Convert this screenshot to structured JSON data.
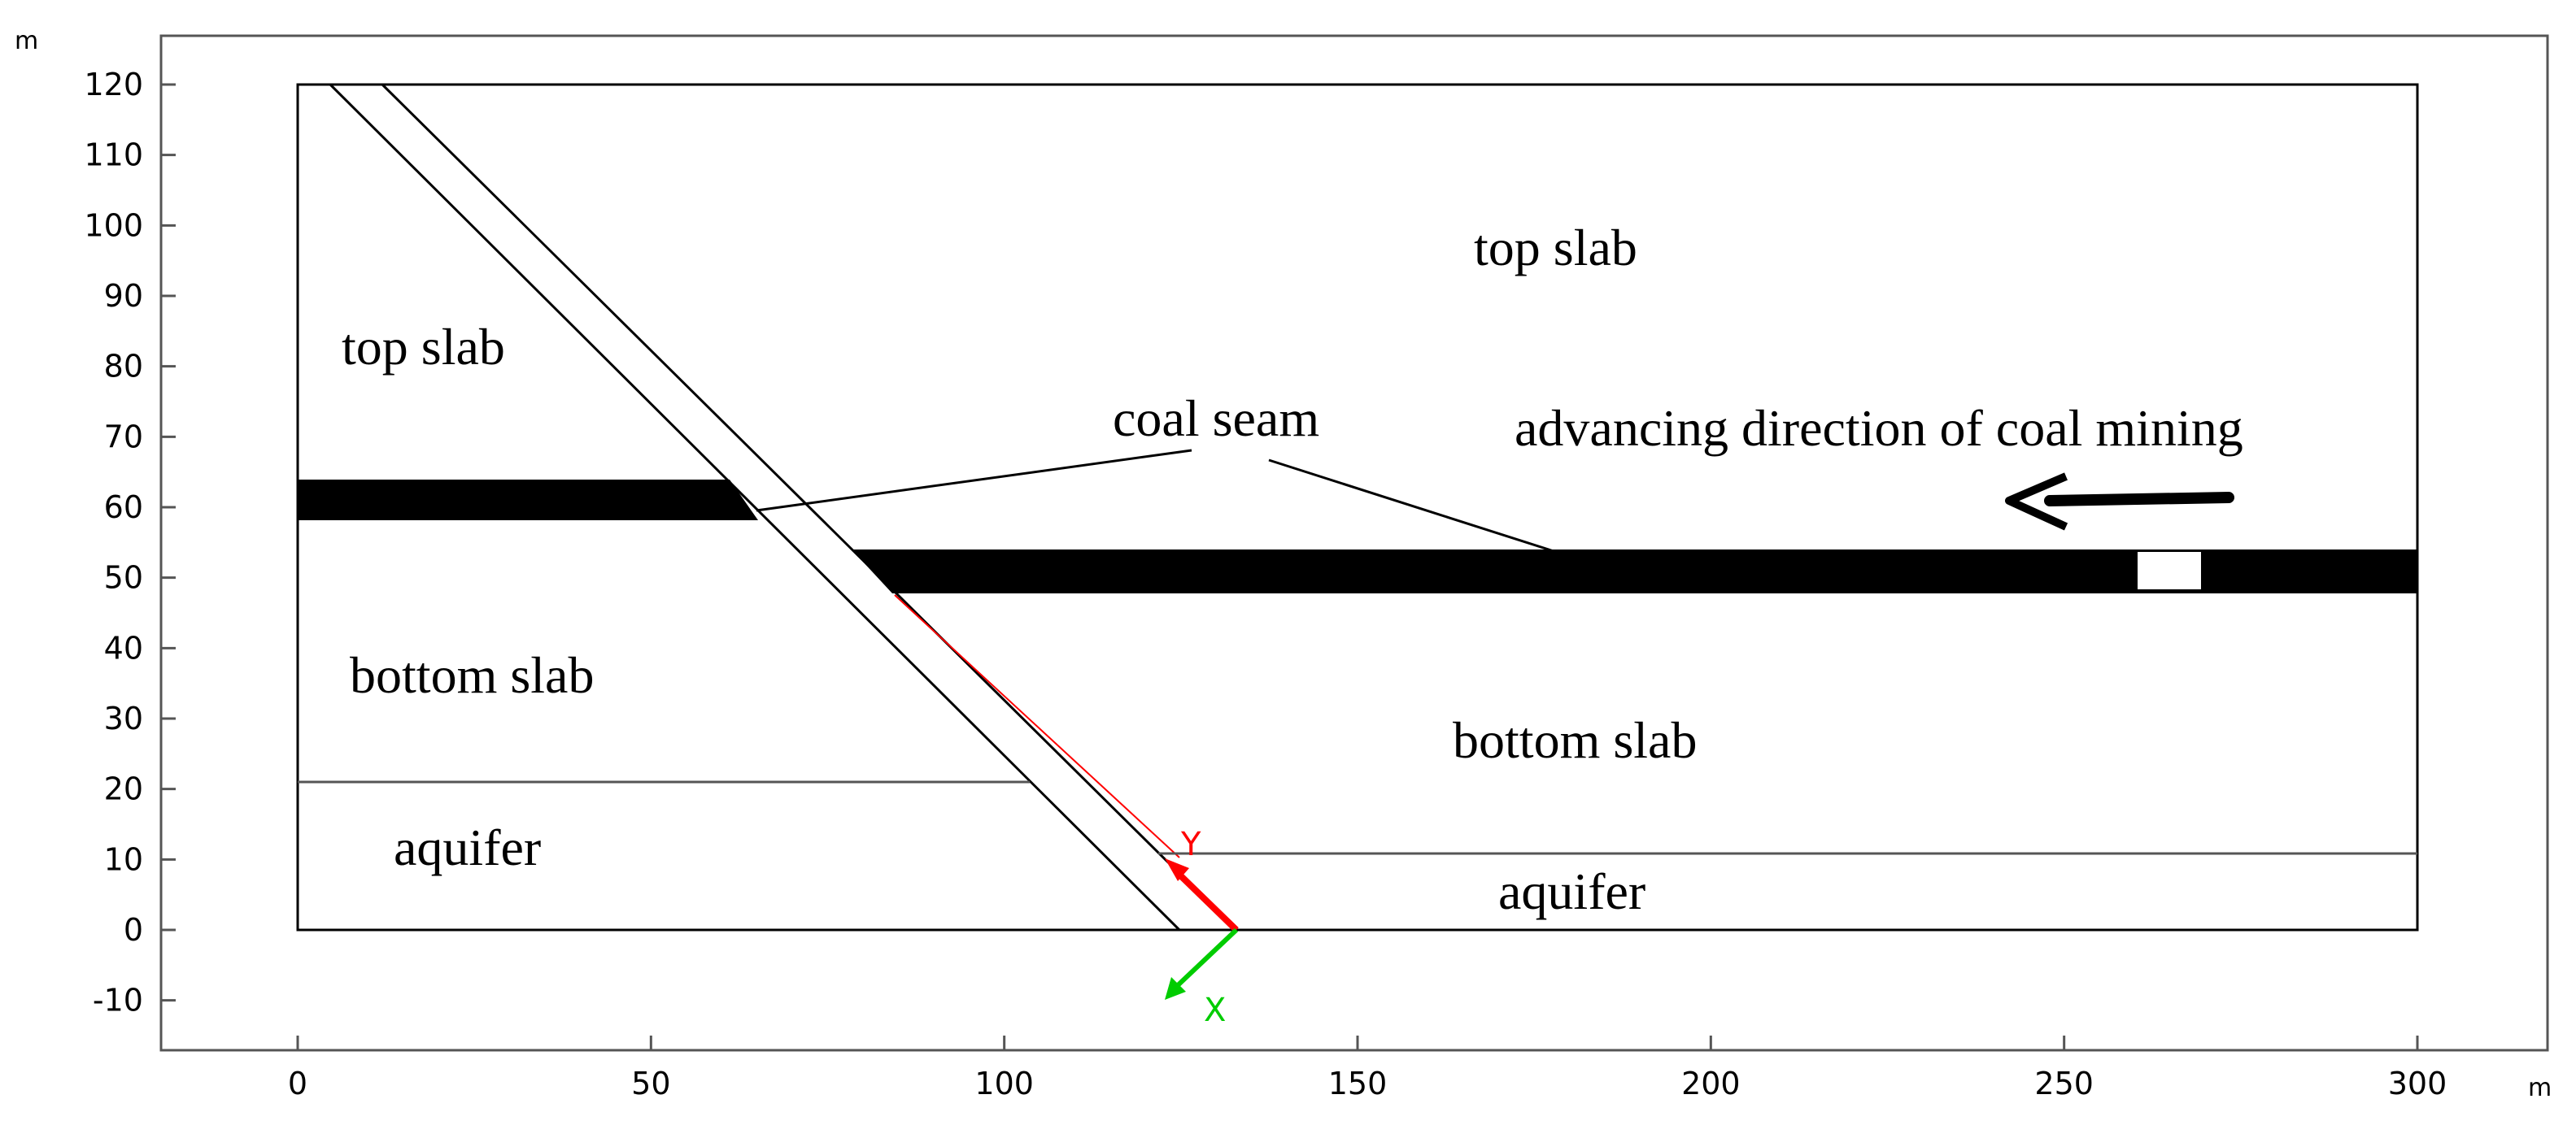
{
  "axes": {
    "x_unit": "m",
    "y_unit": "m",
    "x_ticks": [
      0,
      50,
      100,
      150,
      200,
      250,
      300
    ],
    "y_ticks": [
      120,
      110,
      100,
      90,
      80,
      70,
      60,
      50,
      40,
      30,
      20,
      10,
      0,
      -10
    ],
    "x_range": [
      -19,
      320
    ],
    "y_range": [
      -17,
      130
    ]
  },
  "labels": {
    "top_slab_left": "top slab",
    "top_slab_right": "top slab",
    "coal_seam": "coal seam",
    "advancing_direction": "advancing direction of coal mining",
    "bottom_slab_left": "bottom slab",
    "bottom_slab_right": "bottom slab",
    "aquifer_left": "aquifer",
    "aquifer_right": "aquifer",
    "local_axis_y": "Y",
    "local_axis_x": "X"
  },
  "colors": {
    "outline": "#000000",
    "frame": "#555555",
    "local_y_axis": "#ff0000",
    "local_x_axis": "#00cc00"
  }
}
